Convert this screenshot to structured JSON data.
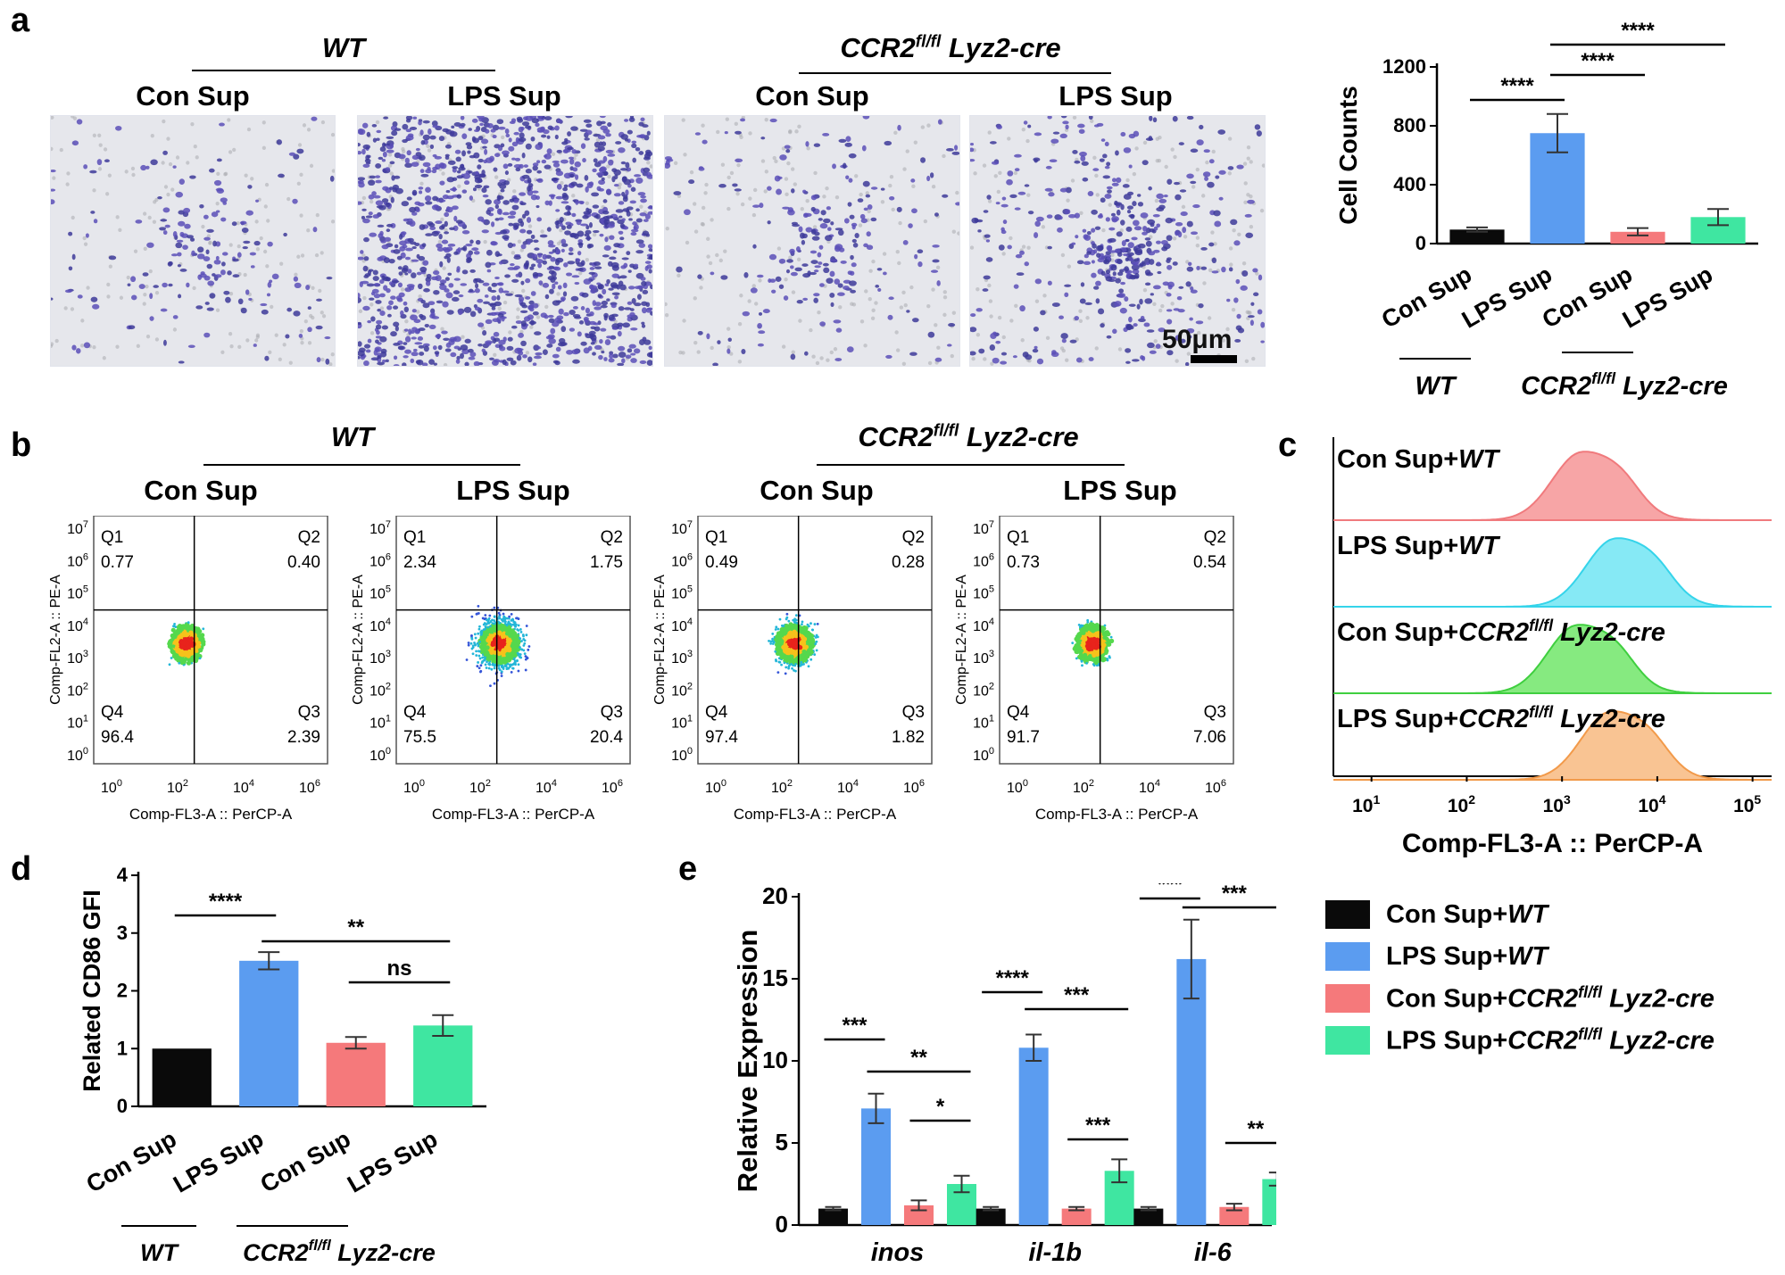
{
  "panel_letters": [
    "a",
    "b",
    "c",
    "d",
    "e"
  ],
  "groups": {
    "wt": "WT",
    "ko_main": "CCR2",
    "ko_sup": "fl/fl",
    "ko_rest": " Lyz2-cre"
  },
  "conditions": {
    "con": "Con Sup",
    "lps": "LPS Sup"
  },
  "panel_a": {
    "scale_bar": "50μm",
    "images": [
      {
        "group": "WT",
        "condition": "Con Sup",
        "density": 0.12
      },
      {
        "group": "WT",
        "condition": "LPS Sup",
        "density": 0.9
      },
      {
        "group": "CCR2fl/fl Lyz2-cre",
        "condition": "Con Sup",
        "density": 0.15
      },
      {
        "group": "CCR2fl/fl Lyz2-cre",
        "condition": "LPS Sup",
        "density": 0.3
      }
    ]
  },
  "colors": {
    "wt_con": "#0a0a0a",
    "wt_lps": "#5b9cf0",
    "ko_con": "#f5797b",
    "ko_lps": "#3fe6a1"
  },
  "flow_b": {
    "x_axis_label": "Comp-FL3-A :: PerCP-A",
    "y_axis_label": "Comp-FL2-A :: PE-A",
    "tick_exponents_x": [
      "0",
      "2",
      "4",
      "6"
    ],
    "tick_exponents_y": [
      "0",
      "1",
      "2",
      "3",
      "4",
      "5",
      "6",
      "7"
    ],
    "quadrant_names": [
      "Q1",
      "Q2",
      "Q3",
      "Q4"
    ],
    "plots": [
      {
        "q1": "0.77",
        "q2": "0.40",
        "q3": "2.39",
        "q4": "96.4"
      },
      {
        "q1": "2.34",
        "q2": "1.75",
        "q3": "20.4",
        "q4": "75.5"
      },
      {
        "q1": "0.49",
        "q2": "0.28",
        "q3": "1.82",
        "q4": "97.4"
      },
      {
        "q1": "0.73",
        "q2": "0.54",
        "q3": "7.06",
        "q4": "91.7"
      }
    ]
  },
  "histogram_c": {
    "x_label": "Comp-FL3-A :: PerCP-A",
    "tick_exponents": [
      "1",
      "2",
      "3",
      "4",
      "5"
    ],
    "tracks": [
      {
        "label": "Con Sup+",
        "label_italic": "WT",
        "label_sup": "",
        "label_tail": "",
        "color": "#f07a7d",
        "fill": "#f7a5a6",
        "peak_log": 3.2
      },
      {
        "label": "LPS Sup+",
        "label_italic": "WT",
        "label_sup": "",
        "label_tail": "",
        "color": "#35d4ea",
        "fill": "#86e9f5",
        "peak_log": 3.55
      },
      {
        "label": "Con Sup+",
        "label_italic": "CCR2",
        "label_sup": "fl/fl",
        "label_tail": " Lyz2-cre",
        "color": "#3fcf3f",
        "fill": "#86ea80",
        "peak_log": 3.15
      },
      {
        "label": "LPS Sup+",
        "label_italic": "CCR2",
        "label_sup": "fl/fl",
        "label_tail": " Lyz2-cre",
        "color": "#f29a4a",
        "fill": "#f9c493",
        "peak_log": 3.5
      }
    ]
  },
  "legend_e": [
    {
      "label": "Con Sup+",
      "italic": "WT",
      "sup": "",
      "tail": "",
      "color": "#0a0a0a"
    },
    {
      "label": "LPS Sup+",
      "italic": "WT",
      "sup": "",
      "tail": "",
      "color": "#5b9cf0"
    },
    {
      "label": "Con Sup+",
      "italic": "CCR2",
      "sup": "fl/fl",
      "tail": " Lyz2-cre",
      "color": "#f5797b"
    },
    {
      "label": "LPS Sup+",
      "italic": "CCR2",
      "sup": "fl/fl",
      "tail": " Lyz2-cre",
      "color": "#3fe6a1"
    }
  ],
  "chart_data": [
    {
      "type": "bar",
      "panel": "a",
      "categories": [
        "Con Sup",
        "LPS Sup",
        "Con Sup",
        "LPS Sup"
      ],
      "groups": [
        "WT",
        "CCR2fl/fl Lyz2-cre"
      ],
      "values": [
        95,
        750,
        80,
        180
      ],
      "errors": [
        15,
        130,
        25,
        55
      ],
      "ylabel": "Cell Counts",
      "ylim": [
        0,
        1200
      ],
      "yticks": [
        0,
        400,
        800,
        1200
      ],
      "significance": [
        {
          "a": 0,
          "b": 1,
          "label": "****"
        },
        {
          "a": 1,
          "b": 2,
          "label": "****"
        },
        {
          "a": 1,
          "b": 3,
          "label": "****"
        }
      ]
    },
    {
      "type": "bar",
      "panel": "d",
      "categories": [
        "Con Sup",
        "LPS Sup",
        "Con Sup",
        "LPS Sup"
      ],
      "groups": [
        "WT",
        "CCR2fl/fl Lyz2-cre"
      ],
      "values": [
        1.0,
        2.52,
        1.1,
        1.4
      ],
      "errors": [
        0,
        0.15,
        0.1,
        0.18
      ],
      "ylabel": "Related CD86 GFI",
      "ylim": [
        0,
        4
      ],
      "yticks": [
        0,
        1,
        2,
        3,
        4
      ],
      "significance": [
        {
          "a": 0,
          "b": 1,
          "label": "****"
        },
        {
          "a": 1,
          "b": 3,
          "label": "**"
        },
        {
          "a": 2,
          "b": 3,
          "label": "ns"
        }
      ]
    },
    {
      "type": "bar",
      "panel": "e",
      "categories": [
        "inos",
        "il-1b",
        "il-6"
      ],
      "series": [
        {
          "name": "Con Sup+WT",
          "values": [
            1.0,
            1.0,
            1.0
          ],
          "errors": [
            0.1,
            0.1,
            0.1
          ]
        },
        {
          "name": "LPS Sup+WT",
          "values": [
            7.1,
            10.8,
            16.2
          ],
          "errors": [
            0.9,
            0.8,
            2.4
          ]
        },
        {
          "name": "Con Sup+CCR2fl/fl Lyz2-cre",
          "values": [
            1.2,
            1.0,
            1.1
          ],
          "errors": [
            0.3,
            0.1,
            0.2
          ]
        },
        {
          "name": "LPS Sup+CCR2fl/fl Lyz2-cre",
          "values": [
            2.5,
            3.3,
            2.8
          ],
          "errors": [
            0.5,
            0.7,
            0.4
          ]
        }
      ],
      "ylabel": "Relative Expression",
      "ylim": [
        0,
        20
      ],
      "yticks": [
        0,
        5,
        10,
        15,
        20
      ],
      "significance": [
        {
          "cat": 0,
          "a": 0,
          "b": 1,
          "label": "***"
        },
        {
          "cat": 0,
          "a": 1,
          "b": 3,
          "label": "**"
        },
        {
          "cat": 0,
          "a": 2,
          "b": 3,
          "label": "*"
        },
        {
          "cat": 1,
          "a": 0,
          "b": 1,
          "label": "****"
        },
        {
          "cat": 1,
          "a": 1,
          "b": 3,
          "label": "***"
        },
        {
          "cat": 1,
          "a": 2,
          "b": 3,
          "label": "***"
        },
        {
          "cat": 2,
          "a": 0,
          "b": 1,
          "label": "***"
        },
        {
          "cat": 2,
          "a": 1,
          "b": 3,
          "label": "***"
        },
        {
          "cat": 2,
          "a": 2,
          "b": 3,
          "label": "**"
        }
      ]
    }
  ]
}
